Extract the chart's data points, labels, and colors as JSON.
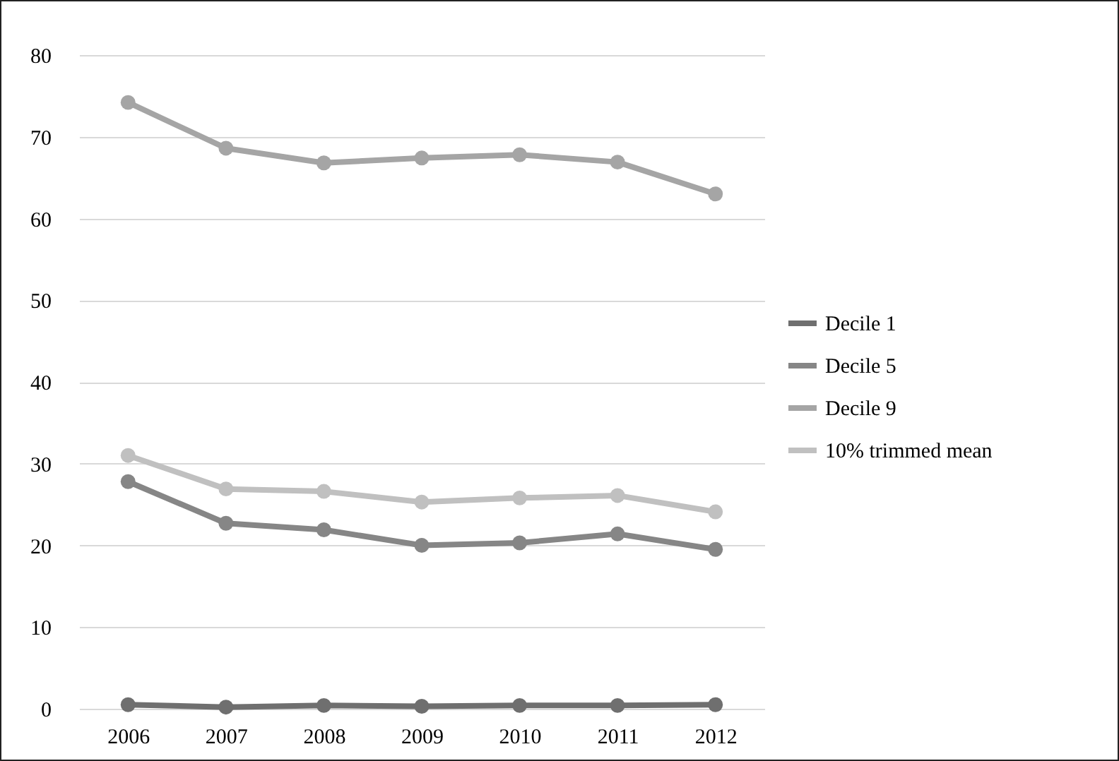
{
  "chart_data": {
    "type": "line",
    "categories": [
      "2006",
      "2007",
      "2008",
      "2009",
      "2010",
      "2011",
      "2012"
    ],
    "series": [
      {
        "name": "Decile 1",
        "color": "#6f6f6f",
        "values": [
          0.5,
          0.2,
          0.4,
          0.3,
          0.4,
          0.4,
          0.5
        ]
      },
      {
        "name": "Decile 5",
        "color": "#868686",
        "values": [
          27.8,
          22.7,
          21.9,
          20.0,
          20.3,
          21.4,
          19.5
        ]
      },
      {
        "name": "Decile 9",
        "color": "#a5a5a5",
        "values": [
          74.2,
          68.6,
          66.8,
          67.4,
          67.8,
          66.9,
          63.0
        ]
      },
      {
        "name": "10% trimmed mean",
        "color": "#c0c0c0",
        "values": [
          31.0,
          26.9,
          26.6,
          25.3,
          25.8,
          26.1,
          24.1
        ]
      }
    ],
    "ylim": [
      0,
      80
    ],
    "yticks": [
      0,
      10,
      20,
      30,
      40,
      50,
      60,
      70,
      80
    ],
    "grid": "y",
    "legend": "right",
    "marker": "circle",
    "line_style": "solid"
  }
}
